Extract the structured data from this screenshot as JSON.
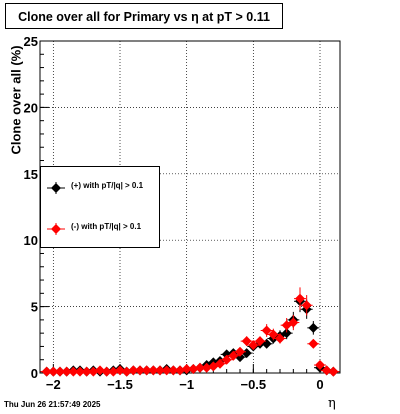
{
  "chart_data": {
    "type": "scatter",
    "title": "Clone  over all for Primary vs   η  at pT > 0.11",
    "xlabel": "η",
    "ylabel": "Clone  over all (%)",
    "xlim": [
      -2.1,
      0.15
    ],
    "ylim": [
      0,
      25
    ],
    "grid": true,
    "legend_position": "left",
    "x_ticks": [
      -2,
      -1.5,
      -1,
      -0.5,
      0
    ],
    "x_tick_labels": [
      "−2",
      "−1.5",
      "−1",
      "−0.5",
      "0"
    ],
    "y_ticks": [
      0,
      5,
      10,
      15,
      20,
      25
    ],
    "y_tick_labels": [
      "0",
      "5",
      "10",
      "15",
      "20",
      "25"
    ],
    "series": [
      {
        "name": "(+) with pT/|q| > 0.1",
        "color": "#000000",
        "x": [
          -2.05,
          -2.0,
          -1.95,
          -1.9,
          -1.85,
          -1.8,
          -1.75,
          -1.7,
          -1.65,
          -1.6,
          -1.55,
          -1.5,
          -1.45,
          -1.4,
          -1.35,
          -1.3,
          -1.25,
          -1.2,
          -1.15,
          -1.1,
          -1.05,
          -1.0,
          -0.95,
          -0.9,
          -0.85,
          -0.8,
          -0.75,
          -0.7,
          -0.65,
          -0.6,
          -0.55,
          -0.5,
          -0.45,
          -0.4,
          -0.35,
          -0.3,
          -0.25,
          -0.2,
          -0.15,
          -0.1,
          -0.05,
          0.0,
          0.05,
          0.1
        ],
        "y": [
          0.1,
          0.1,
          0.1,
          0.1,
          0.2,
          0.2,
          0.1,
          0.2,
          0.1,
          0.1,
          0.2,
          0.3,
          0.1,
          0.2,
          0.2,
          0.2,
          0.2,
          0.2,
          0.3,
          0.2,
          0.2,
          0.2,
          0.3,
          0.4,
          0.6,
          0.8,
          0.9,
          1.4,
          1.5,
          1.2,
          1.5,
          2.0,
          2.2,
          2.2,
          2.6,
          2.8,
          3.0,
          4.0,
          5.4,
          4.8,
          3.4,
          0.4,
          0.2,
          0.1
        ]
      },
      {
        "name": "(-) with pT/|q| > 0.1",
        "color": "#ff0000",
        "x": [
          -2.05,
          -2.0,
          -1.95,
          -1.9,
          -1.85,
          -1.8,
          -1.75,
          -1.7,
          -1.65,
          -1.6,
          -1.55,
          -1.5,
          -1.45,
          -1.4,
          -1.35,
          -1.3,
          -1.25,
          -1.2,
          -1.15,
          -1.1,
          -1.05,
          -1.0,
          -0.95,
          -0.9,
          -0.85,
          -0.8,
          -0.75,
          -0.7,
          -0.65,
          -0.6,
          -0.55,
          -0.5,
          -0.45,
          -0.4,
          -0.35,
          -0.3,
          -0.25,
          -0.2,
          -0.15,
          -0.1,
          -0.05,
          0.0,
          0.05,
          0.1
        ],
        "y": [
          0.1,
          0.1,
          0.1,
          0.1,
          0.1,
          0.1,
          0.1,
          0.1,
          0.2,
          0.1,
          0.1,
          0.2,
          0.1,
          0.2,
          0.2,
          0.2,
          0.2,
          0.2,
          0.2,
          0.2,
          0.2,
          0.3,
          0.3,
          0.4,
          0.4,
          0.5,
          0.7,
          1.0,
          1.3,
          1.6,
          2.4,
          2.1,
          2.4,
          3.2,
          2.9,
          2.6,
          3.6,
          3.8,
          5.6,
          5.1,
          2.2,
          0.6,
          0.2,
          0.1
        ]
      }
    ]
  },
  "date_stamp": "Thu Jun 26 21:57:49 2025"
}
